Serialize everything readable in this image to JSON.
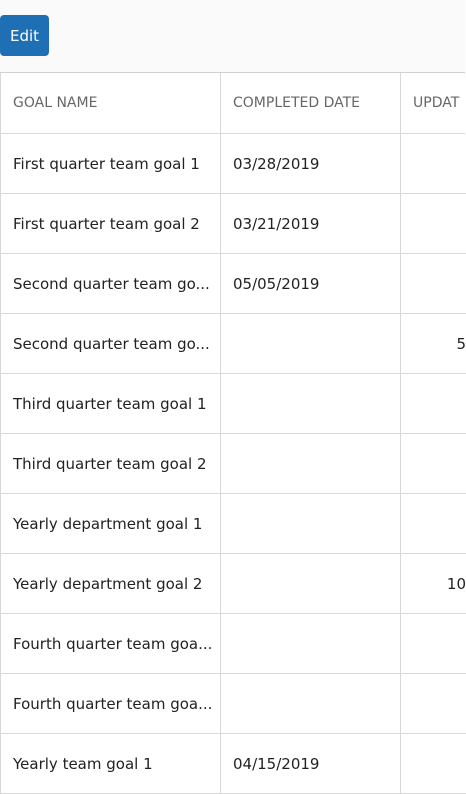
{
  "toolbar": {
    "edit_button": "Edit"
  },
  "table": {
    "headers": [
      "GOAL NAME",
      "COMPLETED DATE",
      "UPDAT"
    ],
    "rows": [
      [
        "First quarter team goal 1",
        "03/28/2019",
        null
      ],
      [
        "First quarter team goal 2",
        "03/21/2019",
        null
      ],
      [
        "Second quarter team go...",
        "05/05/2019",
        null
      ],
      [
        "Second quarter team go...",
        null,
        "5"
      ],
      [
        "Third quarter team goal 1",
        null,
        null
      ],
      [
        "Third quarter team goal 2",
        null,
        null
      ],
      [
        "Yearly department goal 1",
        null,
        null
      ],
      [
        "Yearly department goal 2",
        null,
        "10"
      ],
      [
        "Fourth quarter team goa...",
        null,
        null
      ],
      [
        "Fourth quarter team goa...",
        null,
        null
      ],
      [
        "Yearly team goal 1",
        "04/15/2019",
        null
      ]
    ]
  }
}
